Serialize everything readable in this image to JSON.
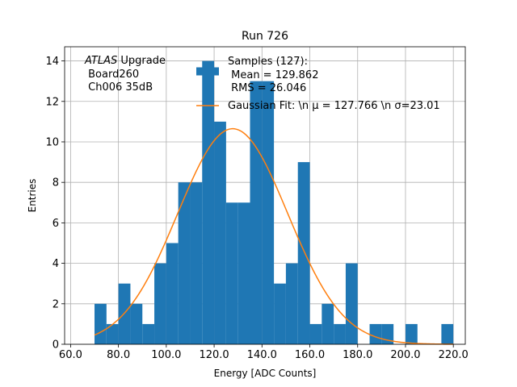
{
  "chart_data": {
    "type": "bar",
    "title": "Run 726",
    "xlabel": "Energy [ADC Counts]",
    "ylabel": "Entries",
    "xlim": [
      57.5,
      225
    ],
    "ylim": [
      0,
      14.7
    ],
    "grid": true,
    "x_ticks": [
      60,
      80,
      100,
      120,
      140,
      160,
      180,
      200,
      220
    ],
    "x_tick_labels": [
      "60.0",
      "80.0",
      "100.0",
      "120.0",
      "140.0",
      "160.0",
      "180.0",
      "200.0",
      "220.0"
    ],
    "y_ticks": [
      0,
      2,
      4,
      6,
      8,
      10,
      12,
      14
    ],
    "y_tick_labels": [
      "0",
      "2",
      "4",
      "6",
      "8",
      "10",
      "12",
      "14"
    ],
    "bin_edges": [
      70,
      75,
      80,
      85,
      90,
      95,
      100,
      105,
      110,
      115,
      120,
      125,
      130,
      135,
      140,
      145,
      150,
      155,
      160,
      165,
      170,
      175,
      180,
      185,
      190,
      195,
      200,
      205,
      210,
      215,
      220
    ],
    "series": [
      {
        "name": "Samples (127):",
        "kind": "histogram",
        "color": "#1f77b4",
        "values": [
          2,
          1,
          3,
          2,
          1,
          4,
          5,
          8,
          8,
          14,
          11,
          7,
          7,
          13,
          13,
          3,
          4,
          9,
          1,
          2,
          1,
          4,
          0,
          1,
          1,
          0,
          1,
          0,
          0,
          1
        ]
      },
      {
        "name": "Gaussian Fit",
        "kind": "line",
        "color": "#ff7f0e",
        "mu": 127.766,
        "sigma": 23.01,
        "amplitude": 10.65,
        "x_range": [
          70,
          220
        ]
      }
    ],
    "annotation": {
      "italic": "ATLAS",
      "line1_rest": " Upgrade",
      "line2": " Board260",
      "line3": " Ch006 35dB"
    },
    "legend": {
      "position": "top-right",
      "hist_lines": [
        "Samples (127):",
        " Mean = 129.862",
        " RMS = 26.046"
      ],
      "fit_label": "Gaussian Fit: \\n μ = 127.766 \\n σ=23.01"
    }
  }
}
